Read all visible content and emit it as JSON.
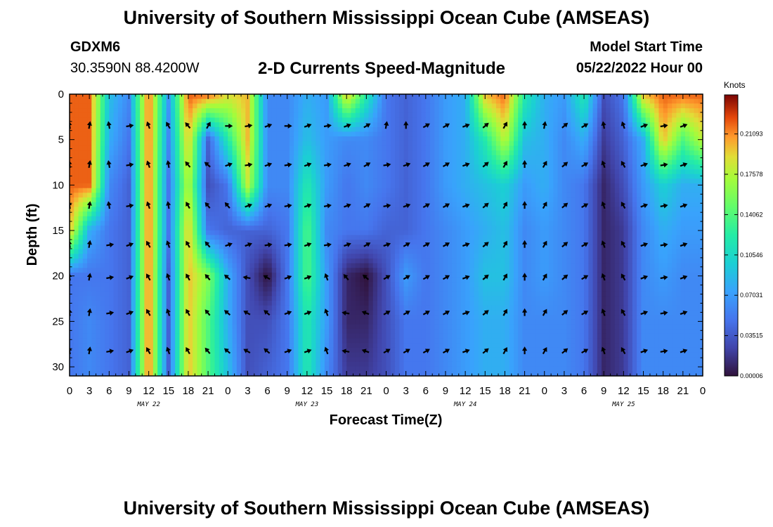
{
  "header": {
    "title": "University of Southern Mississippi Ocean Cube (AMSEAS)",
    "station_id": "GDXM6",
    "station_coords": "30.3590N  88.4200W",
    "plot_title": "2-D Currents Speed-Magnitude",
    "start_label": "Model Start Time",
    "start_value": "05/22/2022 Hour 00"
  },
  "footer": {
    "title": "University of Southern Mississippi Ocean Cube (AMSEAS)"
  },
  "chart_data": {
    "type": "heatmap",
    "title": "2-D Currents Speed-Magnitude",
    "xlabel": "Forecast Time(Z)",
    "ylabel": "Depth (ft)",
    "x_range_hours": [
      0,
      96
    ],
    "ylim": [
      31,
      0
    ],
    "x_tick_labels": [
      "0",
      "3",
      "6",
      "9",
      "12",
      "15",
      "18",
      "21",
      "0",
      "3",
      "6",
      "9",
      "12",
      "15",
      "18",
      "21",
      "0",
      "3",
      "6",
      "9",
      "12",
      "15",
      "18",
      "21",
      "0",
      "3",
      "6",
      "9",
      "12",
      "15",
      "18",
      "21",
      "0"
    ],
    "day_labels": [
      {
        "label": "MAY 22",
        "hour": 12
      },
      {
        "label": "MAY 23",
        "hour": 36
      },
      {
        "label": "MAY 24",
        "hour": 60
      },
      {
        "label": "MAY 25",
        "hour": 84
      }
    ],
    "y_ticks": [
      0,
      5,
      10,
      15,
      20,
      25,
      30
    ],
    "colorbar": {
      "unit": "Knots",
      "min": 0.0,
      "max": 0.245,
      "tick_values": [
        6e-05,
        0.03515,
        0.07031,
        0.10546,
        0.14062,
        0.17578,
        0.21093
      ],
      "tick_labels": [
        "0.00006",
        "0.03515",
        "0.07031",
        "0.10546",
        "0.14062",
        "0.17578",
        "0.21093"
      ]
    },
    "speed_sample_hours": [
      0,
      3,
      6,
      9,
      12,
      15,
      18,
      21,
      24,
      27,
      30,
      33,
      36,
      39,
      42,
      45,
      48,
      51,
      54,
      57,
      60,
      63,
      66,
      69,
      72,
      75,
      78,
      81,
      84,
      87,
      90,
      93,
      96
    ],
    "speed_sample_depths": [
      0,
      5,
      10,
      15,
      20,
      25,
      31
    ],
    "speed_grid": [
      [
        0.22,
        0.22,
        0.09,
        0.06,
        0.22,
        0.07,
        0.22,
        0.22,
        0.19,
        0.2,
        0.06,
        0.06,
        0.08,
        0.07,
        0.2,
        0.12,
        0.05,
        0.04,
        0.05,
        0.07,
        0.08,
        0.2,
        0.22,
        0.12,
        0.08,
        0.07,
        0.12,
        0.03,
        0.05,
        0.2,
        0.22,
        0.22,
        0.22
      ],
      [
        0.22,
        0.22,
        0.08,
        0.05,
        0.22,
        0.06,
        0.2,
        0.04,
        0.12,
        0.2,
        0.06,
        0.06,
        0.09,
        0.07,
        0.06,
        0.06,
        0.05,
        0.04,
        0.05,
        0.07,
        0.08,
        0.12,
        0.18,
        0.09,
        0.08,
        0.06,
        0.08,
        0.02,
        0.04,
        0.08,
        0.2,
        0.14,
        0.18
      ],
      [
        0.22,
        0.22,
        0.06,
        0.04,
        0.22,
        0.05,
        0.18,
        0.03,
        0.05,
        0.18,
        0.06,
        0.06,
        0.12,
        0.07,
        0.05,
        0.06,
        0.05,
        0.04,
        0.05,
        0.07,
        0.08,
        0.09,
        0.1,
        0.07,
        0.08,
        0.06,
        0.05,
        0.01,
        0.03,
        0.07,
        0.1,
        0.08,
        0.08
      ],
      [
        0.2,
        0.08,
        0.05,
        0.04,
        0.22,
        0.05,
        0.2,
        0.05,
        0.04,
        0.04,
        0.04,
        0.05,
        0.14,
        0.06,
        0.05,
        0.05,
        0.04,
        0.04,
        0.05,
        0.06,
        0.07,
        0.08,
        0.09,
        0.06,
        0.07,
        0.06,
        0.05,
        0.01,
        0.02,
        0.06,
        0.08,
        0.07,
        0.07
      ],
      [
        0.05,
        0.05,
        0.05,
        0.04,
        0.22,
        0.04,
        0.2,
        0.16,
        0.08,
        0.03,
        0.0,
        0.05,
        0.14,
        0.07,
        0.01,
        0.0,
        0.03,
        0.07,
        0.05,
        0.06,
        0.07,
        0.09,
        0.09,
        0.06,
        0.07,
        0.06,
        0.05,
        0.01,
        0.02,
        0.06,
        0.07,
        0.06,
        0.06
      ],
      [
        0.05,
        0.06,
        0.05,
        0.04,
        0.22,
        0.04,
        0.2,
        0.14,
        0.08,
        0.03,
        0.03,
        0.05,
        0.12,
        0.07,
        0.01,
        0.01,
        0.03,
        0.05,
        0.05,
        0.06,
        0.07,
        0.08,
        0.08,
        0.06,
        0.06,
        0.06,
        0.05,
        0.01,
        0.02,
        0.06,
        0.06,
        0.06,
        0.06
      ],
      [
        0.05,
        0.06,
        0.05,
        0.04,
        0.22,
        0.04,
        0.2,
        0.14,
        0.09,
        0.03,
        0.04,
        0.05,
        0.12,
        0.06,
        0.02,
        0.02,
        0.03,
        0.05,
        0.05,
        0.06,
        0.07,
        0.08,
        0.08,
        0.06,
        0.06,
        0.06,
        0.05,
        0.01,
        0.02,
        0.06,
        0.06,
        0.06,
        0.06
      ]
    ],
    "vector_depths": [
      3.5,
      7.8,
      12.3,
      16.6,
      20.2,
      24.1,
      28.3
    ],
    "vector_hours": [
      0,
      3,
      6,
      9,
      12,
      15,
      18,
      21,
      24,
      27,
      30,
      33,
      36,
      39,
      42,
      45,
      48,
      51,
      54,
      57,
      60,
      63,
      66,
      69,
      72,
      75,
      78,
      81,
      84,
      87,
      90,
      93
    ],
    "vector_angles_deg": [
      [
        -100,
        -80,
        -100,
        -10,
        -110,
        -120,
        -130,
        -60,
        0,
        -10,
        -20,
        0,
        -20,
        -10,
        -20,
        -30,
        -80,
        -90,
        -30,
        -30,
        -20,
        -40,
        -60,
        -90,
        -80,
        -40,
        -30,
        -100,
        -110,
        -20,
        -10,
        -20
      ],
      [
        -100,
        -80,
        -100,
        -10,
        -110,
        -100,
        -130,
        -140,
        -20,
        -10,
        -20,
        -10,
        -20,
        -10,
        -20,
        -30,
        -10,
        -20,
        -30,
        -30,
        -20,
        -40,
        -60,
        -90,
        -60,
        -40,
        -30,
        -110,
        -120,
        -20,
        -10,
        -20
      ],
      [
        -100,
        -80,
        -100,
        -10,
        -110,
        -100,
        -120,
        -130,
        -130,
        -20,
        -20,
        -10,
        -20,
        -10,
        -20,
        -30,
        -10,
        -20,
        -30,
        -30,
        -20,
        -40,
        -60,
        -90,
        -60,
        -40,
        -30,
        -110,
        -120,
        -20,
        -10,
        -20
      ],
      [
        -100,
        -80,
        -10,
        -20,
        -120,
        -110,
        -120,
        -130,
        -20,
        -20,
        -10,
        -10,
        -20,
        -10,
        -20,
        -30,
        -20,
        -30,
        -30,
        -30,
        -20,
        -40,
        -60,
        -90,
        -60,
        -40,
        -30,
        -110,
        -120,
        -20,
        -10,
        -20
      ],
      [
        -100,
        -80,
        -10,
        -20,
        -120,
        -110,
        -120,
        -130,
        -140,
        -170,
        -150,
        -20,
        -20,
        -110,
        -130,
        -140,
        -30,
        -30,
        -30,
        -30,
        -20,
        -40,
        -60,
        -90,
        -60,
        -40,
        -30,
        -110,
        -120,
        -20,
        -10,
        -20
      ],
      [
        -100,
        -80,
        -10,
        -20,
        -120,
        -110,
        -120,
        -130,
        -140,
        -150,
        -140,
        -20,
        -20,
        -110,
        -170,
        -160,
        -30,
        -30,
        -30,
        -30,
        -20,
        -40,
        -60,
        -90,
        -60,
        -40,
        -30,
        -110,
        -120,
        -20,
        -10,
        -20
      ],
      [
        -100,
        -80,
        -10,
        -20,
        -120,
        -110,
        -120,
        -130,
        -140,
        -150,
        -140,
        -20,
        -20,
        -110,
        -170,
        -160,
        -30,
        -30,
        -30,
        -30,
        -20,
        -40,
        -60,
        -90,
        -60,
        -40,
        -30,
        -110,
        -120,
        -20,
        -10,
        -20
      ]
    ]
  }
}
